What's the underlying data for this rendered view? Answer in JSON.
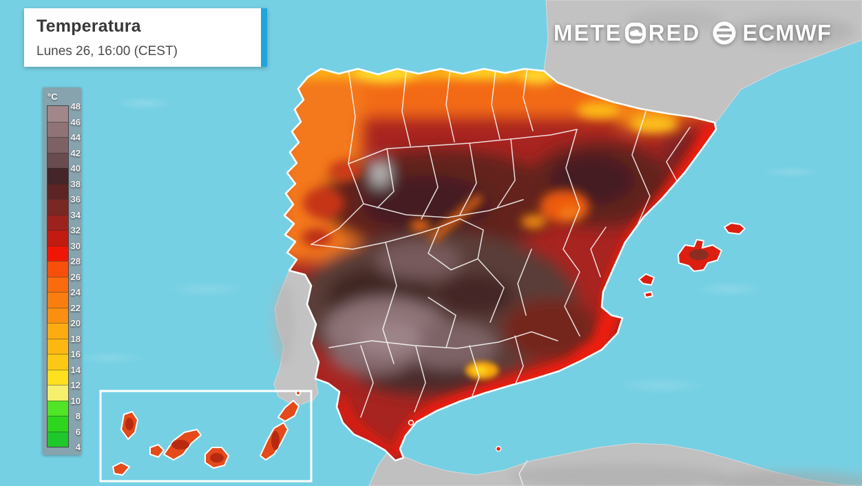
{
  "header": {
    "title": "Temperatura",
    "subtitle": "Lunes 26, 16:00 (CEST)",
    "accent_color": "#1fa6dd"
  },
  "branding": {
    "meteored_prefix": "METE",
    "meteored_suffix": "RED",
    "ecmwf_label": "ECMWF"
  },
  "legend": {
    "unit": "°C",
    "min": 4,
    "max": 48,
    "step": 2,
    "tick_labels": [
      "48",
      "46",
      "44",
      "42",
      "40",
      "38",
      "36",
      "34",
      "32",
      "30",
      "28",
      "26",
      "24",
      "22",
      "20",
      "18",
      "16",
      "14",
      "12",
      "10",
      "8",
      "6",
      "4"
    ],
    "bands_top_to_bottom": [
      {
        "from": 46,
        "to": 48,
        "color": "#a1868a"
      },
      {
        "from": 44,
        "to": 46,
        "color": "#8f7377"
      },
      {
        "from": 42,
        "to": 44,
        "color": "#7d6165"
      },
      {
        "from": 40,
        "to": 42,
        "color": "#684c4f"
      },
      {
        "from": 38,
        "to": 40,
        "color": "#43252a"
      },
      {
        "from": 36,
        "to": 38,
        "color": "#5d2425"
      },
      {
        "from": 34,
        "to": 36,
        "color": "#7a2824"
      },
      {
        "from": 32,
        "to": 34,
        "color": "#9c221e"
      },
      {
        "from": 30,
        "to": 32,
        "color": "#c11b12"
      },
      {
        "from": 28,
        "to": 30,
        "color": "#f01606"
      },
      {
        "from": 26,
        "to": 28,
        "color": "#f8500b"
      },
      {
        "from": 24,
        "to": 26,
        "color": "#f96b0d"
      },
      {
        "from": 22,
        "to": 24,
        "color": "#fa7d0f"
      },
      {
        "from": 20,
        "to": 22,
        "color": "#fb8f11"
      },
      {
        "from": 18,
        "to": 20,
        "color": "#fcab12"
      },
      {
        "from": 16,
        "to": 18,
        "color": "#fcb713"
      },
      {
        "from": 14,
        "to": 16,
        "color": "#fcc815"
      },
      {
        "from": 12,
        "to": 14,
        "color": "#ffdf1e"
      },
      {
        "from": 10,
        "to": 12,
        "color": "#f6ef6d"
      },
      {
        "from": 8,
        "to": 10,
        "color": "#52e426"
      },
      {
        "from": 6,
        "to": 8,
        "color": "#2ed51f"
      },
      {
        "from": 4,
        "to": 6,
        "color": "#1fc82a"
      }
    ]
  },
  "map": {
    "colors": {
      "sea": "#76d0e3",
      "no_data_land": "#c0c0c0",
      "region_border": "#ffffff"
    }
  }
}
